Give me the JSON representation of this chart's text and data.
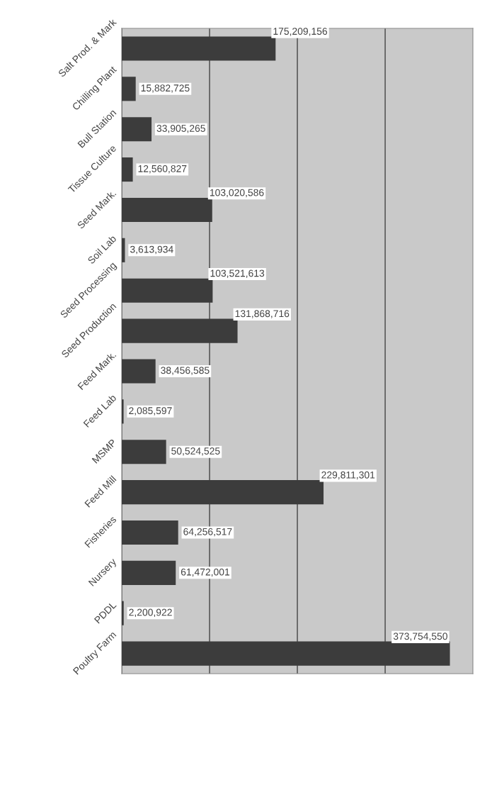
{
  "chart_data": {
    "type": "bar",
    "orientation": "horizontal",
    "categories": [
      "Salt Prod. & Mark",
      "Chilling Plant",
      "Bull Station",
      "Tissue Culture",
      "Seed Mark.",
      "Soil Lab",
      "Seed Processing",
      "Seed Production",
      "Feed Mark.",
      "Feed Lab",
      "MSMP",
      "Feed Mill",
      "Fisheries",
      "Nursery",
      "PDDL",
      "Poultry Farm"
    ],
    "values": [
      175209156,
      15882725,
      33905265,
      12560827,
      103020586,
      3613934,
      103521613,
      131868716,
      38456585,
      2085597,
      50524525,
      229811301,
      64256517,
      61472001,
      2200922,
      373754550
    ],
    "color": "#3c3c3c",
    "value_labels": [
      "175,209,156",
      "15,882,725",
      "33,905,265",
      "12,560,827",
      "103,020,586",
      "3,613,934",
      "103,521,613",
      "131,868,716",
      "38,456,585",
      "2,085,597",
      "50,524,525",
      "229,811,301",
      "64,256,517",
      "61,472,001",
      "2,200,922",
      "373,754,550"
    ],
    "tick_labels": "y",
    "grid": "x"
  }
}
